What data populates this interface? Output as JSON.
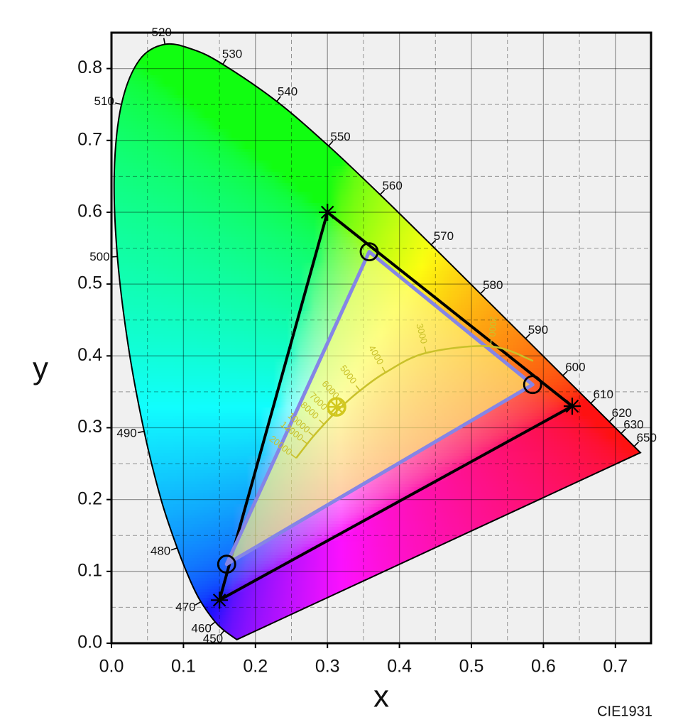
{
  "chart_data": {
    "type": "chromaticity",
    "xlabel": "x",
    "ylabel": "y",
    "note": "CIE1931",
    "xlim": [
      0,
      0.75
    ],
    "ylim": [
      0,
      0.85
    ],
    "xticks": [
      {
        "value": 0,
        "label": "0.0"
      },
      0.1,
      0.2,
      0.3,
      0.4,
      0.5,
      0.6,
      0.7
    ],
    "yticks": [
      {
        "value": 0,
        "label": "0.0"
      },
      0.1,
      0.2,
      0.3,
      0.4,
      0.5,
      0.6,
      0.7,
      0.8
    ],
    "minor_xticks": [
      0.05,
      0.15,
      0.25,
      0.35,
      0.45,
      0.55,
      0.65
    ],
    "minor_yticks": [
      0.05,
      0.15,
      0.25,
      0.35,
      0.45,
      0.55,
      0.65,
      0.75
    ],
    "grid": true,
    "spectral_locus": {
      "color": "#000000",
      "wavelengths": [
        null,
        450,
        460,
        470,
        null,
        480,
        null,
        490,
        null,
        500,
        null,
        510,
        null,
        520,
        null,
        530,
        540,
        550,
        560,
        570,
        580,
        590,
        600,
        610,
        620,
        630,
        650,
        null
      ],
      "x": [
        0.1741,
        0.1566,
        0.144,
        0.1241,
        0.1096,
        0.0913,
        0.0687,
        0.0454,
        0.0235,
        0.0082,
        0.0039,
        0.0139,
        0.0389,
        0.0743,
        0.1142,
        0.1547,
        0.2296,
        0.3016,
        0.3731,
        0.4441,
        0.5125,
        0.5752,
        0.627,
        0.6658,
        0.6915,
        0.7079,
        0.726,
        0.7347
      ],
      "y": [
        0.005,
        0.0177,
        0.0297,
        0.0578,
        0.0868,
        0.1327,
        0.2007,
        0.295,
        0.4127,
        0.5384,
        0.6548,
        0.7502,
        0.812,
        0.8338,
        0.8262,
        0.8059,
        0.7543,
        0.6923,
        0.6245,
        0.5547,
        0.4866,
        0.4242,
        0.3725,
        0.334,
        0.3083,
        0.292,
        0.274,
        0.2653
      ]
    },
    "planckian_locus": {
      "color": "#c9c12a",
      "temperatures": [
        null,
        2000,
        3000,
        4000,
        5000,
        6000,
        7000,
        8000,
        10000,
        12000,
        20000
      ],
      "x": [
        0.5857,
        0.5267,
        0.4369,
        0.3805,
        0.3451,
        0.3221,
        0.3064,
        0.2952,
        0.2807,
        0.2719,
        0.2565
      ],
      "y": [
        0.3931,
        0.4133,
        0.4041,
        0.3768,
        0.3516,
        0.3318,
        0.3166,
        0.3048,
        0.2884,
        0.2776,
        0.2577
      ]
    },
    "white_point": {
      "x": 0.3127,
      "y": 0.329,
      "color": "#d2c81e"
    },
    "gamuts": [
      {
        "marker": "star",
        "color": "#000000",
        "x": [
          0.64,
          0.3,
          0.15
        ],
        "y": [
          0.33,
          0.6,
          0.06
        ]
      },
      {
        "marker": "circle",
        "color": "#8585e6",
        "marker_color": "#000000",
        "fill": "#ffff70",
        "x": [
          0.358,
          0.585,
          0.16
        ],
        "y": [
          0.545,
          0.36,
          0.11
        ]
      }
    ]
  }
}
